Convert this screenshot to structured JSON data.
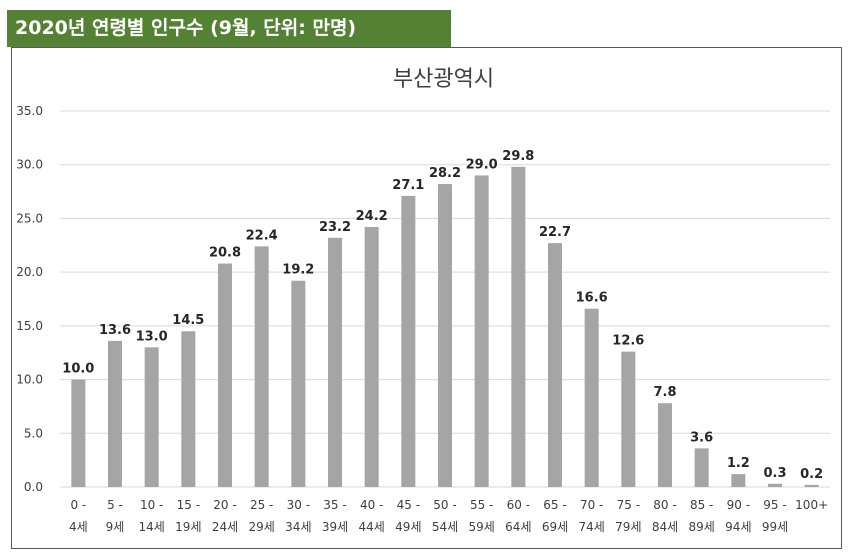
{
  "header": {
    "title": "2020년 연령별 인구수 (9월, 단위: 만명)"
  },
  "colors": {
    "banner": "#548235",
    "bar": "#a5a5a5",
    "grid": "#d9d9d9"
  },
  "chart_data": {
    "type": "bar",
    "title": "부산광역시",
    "xlabel": "",
    "ylabel": "",
    "ylim": [
      0,
      35
    ],
    "y_ticks": [
      "0.0",
      "5.0",
      "10.0",
      "15.0",
      "20.0",
      "25.0",
      "30.0",
      "35.0"
    ],
    "y_tick_values": [
      0,
      5,
      10,
      15,
      20,
      25,
      30,
      35
    ],
    "grid": true,
    "legend": "none",
    "categories": [
      [
        "0 -",
        "4세"
      ],
      [
        "5 -",
        "9세"
      ],
      [
        "10 -",
        "14세"
      ],
      [
        "15 -",
        "19세"
      ],
      [
        "20 -",
        "24세"
      ],
      [
        "25 -",
        "29세"
      ],
      [
        "30 -",
        "34세"
      ],
      [
        "35 -",
        "39세"
      ],
      [
        "40 -",
        "44세"
      ],
      [
        "45 -",
        "49세"
      ],
      [
        "50 -",
        "54세"
      ],
      [
        "55 -",
        "59세"
      ],
      [
        "60 -",
        "64세"
      ],
      [
        "65 -",
        "69세"
      ],
      [
        "70 -",
        "74세"
      ],
      [
        "75 -",
        "79세"
      ],
      [
        "80 -",
        "84세"
      ],
      [
        "85 -",
        "89세"
      ],
      [
        "90 -",
        "94세"
      ],
      [
        "95 -",
        "99세"
      ],
      [
        "100+",
        ""
      ]
    ],
    "values": [
      10.0,
      13.6,
      13.0,
      14.5,
      20.8,
      22.4,
      19.2,
      23.2,
      24.2,
      27.1,
      28.2,
      29.0,
      29.8,
      22.7,
      16.6,
      12.6,
      7.8,
      3.6,
      1.2,
      0.3,
      0.2
    ],
    "value_labels": [
      "10.0",
      "13.6",
      "13.0",
      "14.5",
      "20.8",
      "22.4",
      "19.2",
      "23.2",
      "24.2",
      "27.1",
      "28.2",
      "29.0",
      "29.8",
      "22.7",
      "16.6",
      "12.6",
      "7.8",
      "3.6",
      "1.2",
      "0.3",
      "0.2"
    ]
  }
}
